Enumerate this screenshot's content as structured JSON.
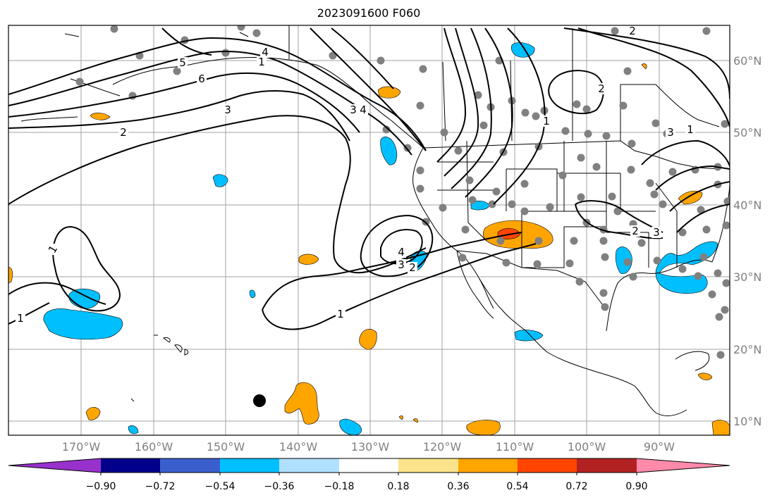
{
  "title": "2023091600 F060",
  "map": {
    "lon_ticks": [
      "170°W",
      "160°W",
      "150°W",
      "140°W",
      "130°W",
      "120°W",
      "110°W",
      "100°W",
      "90°W"
    ],
    "lat_ticks": [
      "60°N",
      "50°N",
      "40°N",
      "30°N",
      "20°N",
      "10°N"
    ],
    "contour_labels": [
      "1",
      "2",
      "3",
      "4",
      "5",
      "6",
      "1",
      "2",
      "3",
      "4",
      "1",
      "2",
      "3",
      "4",
      "1",
      "1",
      "2",
      "3",
      "1",
      "2",
      "3"
    ]
  },
  "colorbar": {
    "colors": [
      "#9932cc",
      "#00008b",
      "#3a5fcd",
      "#00bfff",
      "#b0e0ff",
      "#ffffff",
      "#fae38a",
      "#ffa500",
      "#ff4500",
      "#b22222",
      "#ff8aaa"
    ],
    "tick_labels": [
      "−0.90",
      "−0.72",
      "−0.54",
      "−0.36",
      "−0.18",
      "0.18",
      "0.36",
      "0.54",
      "0.72",
      "0.90"
    ]
  },
  "colors": {
    "positive_shading": "#ffa500",
    "strong_positive": "#ff4500",
    "negative_shading": "#00bfff",
    "station_marker": "#808080",
    "grid": "#a0a0a0"
  }
}
